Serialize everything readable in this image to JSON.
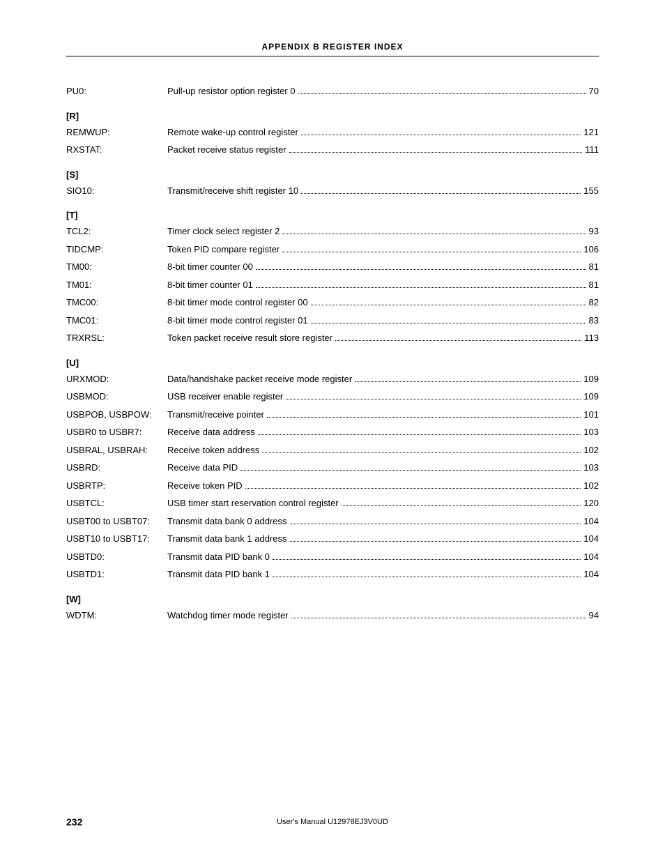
{
  "header": {
    "title": "APPENDIX B   REGISTER INDEX"
  },
  "sections": [
    {
      "letter": null,
      "entries": [
        {
          "label": "PU0:",
          "desc": "Pull-up resistor option register 0",
          "page": "70"
        }
      ]
    },
    {
      "letter": "[R]",
      "entries": [
        {
          "label": "REMWUP:",
          "desc": "Remote wake-up control register",
          "page": "121"
        },
        {
          "label": "RXSTAT:",
          "desc": "Packet receive status register",
          "page": "111"
        }
      ]
    },
    {
      "letter": "[S]",
      "entries": [
        {
          "label": "SIO10:",
          "desc": "Transmit/receive shift register 10",
          "page": "155"
        }
      ]
    },
    {
      "letter": "[T]",
      "entries": [
        {
          "label": "TCL2:",
          "desc": "Timer clock select register 2",
          "page": "93"
        },
        {
          "label": "TIDCMP:",
          "desc": "Token PID compare register",
          "page": "106"
        },
        {
          "label": "TM00:",
          "desc": "8-bit timer counter 00",
          "page": "81"
        },
        {
          "label": "TM01:",
          "desc": "8-bit timer counter 01",
          "page": "81"
        },
        {
          "label": "TMC00:",
          "desc": "8-bit timer mode control register 00",
          "page": "82"
        },
        {
          "label": "TMC01:",
          "desc": "8-bit timer mode control register 01",
          "page": "83"
        },
        {
          "label": "TRXRSL:",
          "desc": "Token packet receive result store register",
          "page": "113"
        }
      ]
    },
    {
      "letter": "[U]",
      "entries": [
        {
          "label": "URXMOD:",
          "desc": "Data/handshake packet receive mode register",
          "page": "109"
        },
        {
          "label": "USBMOD:",
          "desc": "USB receiver enable register",
          "page": "109"
        },
        {
          "label": "USBPOB, USBPOW:",
          "desc": "Transmit/receive pointer",
          "page": "101"
        },
        {
          "label": "USBR0 to USBR7:",
          "desc": "Receive data address",
          "page": "103"
        },
        {
          "label": "USBRAL, USBRAH:",
          "desc": "Receive token address",
          "page": "102"
        },
        {
          "label": "USBRD:",
          "desc": "Receive data PID",
          "page": "103"
        },
        {
          "label": "USBRTP:",
          "desc": "Receive token PID",
          "page": "102"
        },
        {
          "label": "USBTCL:",
          "desc": "USB timer start reservation control register",
          "page": "120"
        },
        {
          "label": "USBT00 to USBT07:",
          "desc": "Transmit data bank 0 address",
          "page": "104"
        },
        {
          "label": "USBT10 to USBT17:",
          "desc": "Transmit data bank 1 address",
          "page": "104"
        },
        {
          "label": "USBTD0:",
          "desc": "Transmit data PID bank 0",
          "page": "104"
        },
        {
          "label": "USBTD1:",
          "desc": "Transmit data PID bank 1",
          "page": "104"
        }
      ]
    },
    {
      "letter": "[W]",
      "entries": [
        {
          "label": "WDTM:",
          "desc": "Watchdog timer mode register",
          "page": "94"
        }
      ]
    }
  ],
  "footer": {
    "page_number": "232",
    "doc_id": "User's Manual  U12978EJ3V0UD"
  }
}
